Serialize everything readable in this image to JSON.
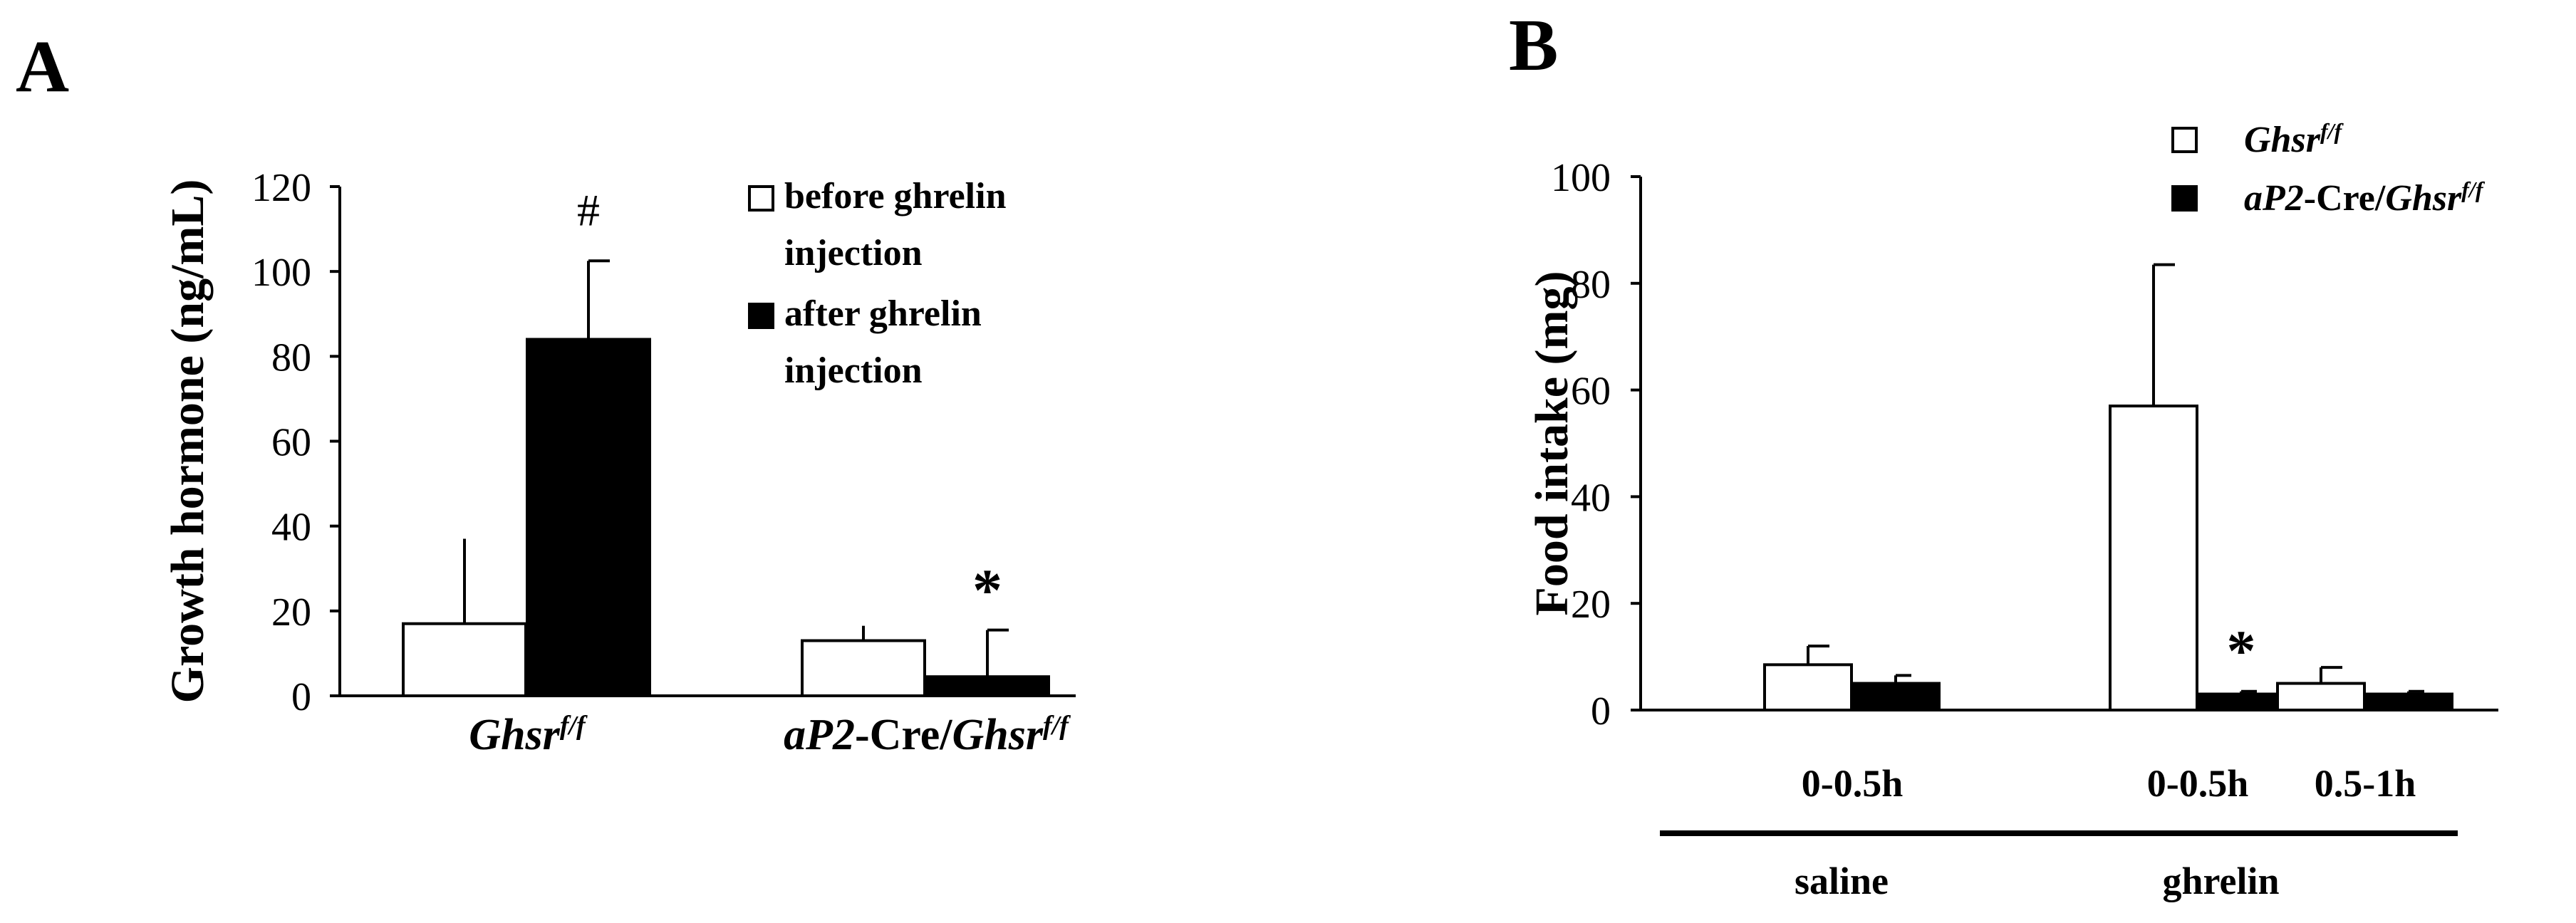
{
  "panels": {
    "A": {
      "label": "A"
    },
    "B": {
      "label": "B"
    }
  },
  "chart_data": [
    {
      "panel": "A",
      "type": "bar",
      "ylabel": "Growth hormone (ng/mL)",
      "ylim": [
        0,
        120
      ],
      "yticks": [
        0,
        20,
        40,
        60,
        80,
        100,
        120
      ],
      "groups": [
        {
          "base": "Ghsr",
          "sup": "f/f",
          "prefix_italic": "",
          "prefix_roman": ""
        },
        {
          "base": "Ghsr",
          "sup": "f/f",
          "prefix_italic": "aP2",
          "prefix_roman": "-Cre/"
        }
      ],
      "series": [
        {
          "name": "before ghrelin injection",
          "name_lines": [
            "before ghrelin",
            "injection"
          ],
          "fill": "#ffffff",
          "values": [
            17,
            13
          ],
          "errors": [
            20,
            3.5
          ]
        },
        {
          "name": "after ghrelin injection",
          "name_lines": [
            "after ghrelin",
            "injection"
          ],
          "fill": "#000000",
          "values": [
            84,
            4.5
          ],
          "errors": [
            18.5,
            11
          ]
        }
      ],
      "annotations": [
        {
          "text": "#",
          "group": 0,
          "series": 1
        },
        {
          "text": "*",
          "group": 1,
          "series": 1
        }
      ],
      "legend": "top-right",
      "grid": false
    },
    {
      "panel": "B",
      "type": "bar",
      "ylabel": "Food intake (mg)",
      "ylim": [
        0,
        100
      ],
      "yticks": [
        0,
        20,
        40,
        60,
        80,
        100
      ],
      "categories": [
        "0-0.5h",
        "0-0.5h",
        "0.5-1h"
      ],
      "treatment_groups": [
        {
          "label": "saline",
          "categories": [
            0
          ]
        },
        {
          "label": "ghrelin",
          "categories": [
            1,
            2
          ]
        }
      ],
      "series": [
        {
          "name_prefix_italic": "",
          "name_prefix_roman": "",
          "name_base": "Ghsr",
          "name_sup": "f/f",
          "fill": "#ffffff",
          "values": [
            8.5,
            57,
            5
          ],
          "errors": [
            3.5,
            26.5,
            3
          ]
        },
        {
          "name_prefix_italic": "aP2",
          "name_prefix_roman": "-Cre/",
          "name_base": "Ghsr",
          "name_sup": "f/f",
          "fill": "#000000",
          "values": [
            5,
            3,
            3
          ],
          "errors": [
            1.5,
            0.5,
            0.5
          ]
        }
      ],
      "annotations": [
        {
          "text": "*",
          "category": 1,
          "series": 1
        }
      ],
      "legend": "top-right",
      "grid": false
    }
  ]
}
